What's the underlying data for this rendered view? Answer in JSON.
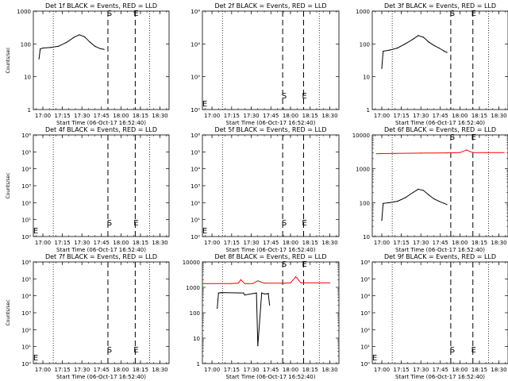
{
  "figure": {
    "x_ticks": [
      "17:00",
      "17:15",
      "17:30",
      "17:45",
      "18:00",
      "18:15",
      "18:30"
    ],
    "xlabel": "Start Time (06-Oct-17 16:52:40)",
    "marker_s": "S",
    "marker_e": "E",
    "colors": {
      "events": "#000000",
      "lld": "#ff0000",
      "background": "#ffffff"
    }
  },
  "chart_data": [
    {
      "type": "line",
      "title": "Det 1f BLACK = Events, RED = LLD",
      "ylabel": "Counts/sec",
      "y_scale": "log",
      "ylim": [
        1,
        1000
      ],
      "y_ticks": [
        "1",
        "10",
        "100",
        "1000"
      ],
      "xlim": [
        "16:52:40",
        "18:37:00"
      ],
      "vlines_dotted": [
        "17:08",
        "18:22"
      ],
      "start_line": "17:50",
      "end_line": "18:11",
      "start_label": "S",
      "end_label": "E",
      "series": [
        {
          "color": "black",
          "x": [
            "16:57",
            "16:58",
            "17:00",
            "17:06",
            "17:12",
            "17:18",
            "17:24",
            "17:28",
            "17:32",
            "17:36",
            "17:40",
            "17:44",
            "17:47"
          ],
          "values": [
            35,
            70,
            75,
            78,
            85,
            110,
            160,
            190,
            165,
            115,
            85,
            72,
            68
          ]
        }
      ]
    },
    {
      "type": "line",
      "title": "Det 2f BLACK = Events, RED = LLD",
      "ylabel": "",
      "y_scale": "log",
      "ylim": [
        1,
        1000000
      ],
      "y_ticks": [
        "10⁰",
        "10²",
        "10⁴",
        "10⁶"
      ],
      "xlim": [
        "16:52:40",
        "18:37:00"
      ],
      "vlines_dotted": [
        "17:08",
        "18:22"
      ],
      "start_line": "17:54",
      "end_line": "18:10",
      "start_label": "S",
      "end_label": "E",
      "series": []
    },
    {
      "type": "line",
      "title": "Det 3f BLACK = Events, RED = LLD",
      "ylabel": "",
      "y_scale": "log",
      "ylim": [
        1,
        1000
      ],
      "y_ticks": [
        "1",
        "10",
        "100",
        "1000"
      ],
      "xlim": [
        "16:52:40",
        "18:37:00"
      ],
      "vlines_dotted": [
        "17:08",
        "18:22"
      ],
      "start_line": "17:53",
      "end_line": "18:10",
      "start_label": "S",
      "end_label": "E",
      "series": [
        {
          "color": "black",
          "x": [
            "17:00",
            "17:01",
            "17:06",
            "17:12",
            "17:18",
            "17:24",
            "17:28",
            "17:32",
            "17:36",
            "17:40",
            "17:44",
            "17:48",
            "17:50"
          ],
          "values": [
            18,
            60,
            65,
            75,
            100,
            140,
            180,
            160,
            115,
            90,
            75,
            60,
            55
          ]
        }
      ]
    },
    {
      "type": "line",
      "title": "Det 4f BLACK = Events, RED = LLD",
      "ylabel": "Counts/sec",
      "y_scale": "log",
      "ylim": [
        1,
        1000000
      ],
      "y_ticks": [
        "10⁰",
        "10¹",
        "10²",
        "10³",
        "10⁴",
        "10⁵",
        "10⁶"
      ],
      "xlim": [
        "16:52:40",
        "18:37:00"
      ],
      "vlines_dotted": [
        "17:08",
        "18:22"
      ],
      "start_line": "17:50",
      "end_line": "18:11",
      "start_label": "S",
      "end_label": "E",
      "series": []
    },
    {
      "type": "line",
      "title": "Det 5f BLACK = Events, RED = LLD",
      "ylabel": "",
      "y_scale": "log",
      "ylim": [
        1,
        1000000
      ],
      "y_ticks": [
        "10⁰",
        "10¹",
        "10²",
        "10³",
        "10⁴",
        "10⁵",
        "10⁶"
      ],
      "xlim": [
        "16:52:40",
        "18:37:00"
      ],
      "vlines_dotted": [
        "17:08",
        "18:22"
      ],
      "start_line": "17:54",
      "end_line": "18:10",
      "start_label": "S",
      "end_label": "E",
      "series": []
    },
    {
      "type": "line",
      "title": "Det 6f BLACK = Events, RED = LLD",
      "ylabel": "",
      "y_scale": "log",
      "ylim": [
        10,
        10000
      ],
      "y_ticks": [
        "10",
        "100",
        "1000",
        "10000"
      ],
      "xlim": [
        "16:52:40",
        "18:37:00"
      ],
      "vlines_dotted": [
        "17:08",
        "18:22"
      ],
      "start_line": "17:53",
      "end_line": "18:10",
      "start_label": "S",
      "end_label": "E",
      "series": [
        {
          "color": "red",
          "x": [
            "16:56",
            "17:10",
            "17:30",
            "17:50",
            "18:00",
            "18:05",
            "18:10",
            "18:20",
            "18:34"
          ],
          "values": [
            2800,
            2850,
            2900,
            2950,
            3000,
            3600,
            3000,
            3000,
            3000
          ]
        },
        {
          "color": "black",
          "x": [
            "17:00",
            "17:01",
            "17:06",
            "17:12",
            "17:18",
            "17:24",
            "17:28",
            "17:32",
            "17:36",
            "17:40",
            "17:44",
            "17:48",
            "17:50"
          ],
          "values": [
            30,
            95,
            100,
            110,
            140,
            200,
            250,
            230,
            170,
            130,
            110,
            95,
            88
          ]
        }
      ]
    },
    {
      "type": "line",
      "title": "Det 7f BLACK = Events, RED = LLD",
      "ylabel": "Counts/sec",
      "y_scale": "log",
      "ylim": [
        1,
        1000000
      ],
      "y_ticks": [
        "10⁰",
        "10¹",
        "10²",
        "10³",
        "10⁴",
        "10⁵",
        "10⁶"
      ],
      "xlim": [
        "16:52:40",
        "18:37:00"
      ],
      "vlines_dotted": [
        "17:08",
        "18:22"
      ],
      "start_line": "17:50",
      "end_line": "18:11",
      "start_label": "S",
      "end_label": "E",
      "series": []
    },
    {
      "type": "line",
      "title": "Det 8f BLACK = Events, RED = LLD",
      "ylabel": "",
      "y_scale": "log",
      "ylim": [
        1,
        10000
      ],
      "y_ticks": [
        "1",
        "10",
        "100",
        "1000",
        "10000"
      ],
      "xlim": [
        "16:52:40",
        "18:37:00"
      ],
      "vlines_dotted": [
        "17:08",
        "18:22"
      ],
      "start_line": "17:54",
      "end_line": "18:10",
      "start_label": "S",
      "end_label": "E",
      "series": [
        {
          "color": "red",
          "x": [
            "16:53",
            "17:15",
            "17:20",
            "17:22",
            "17:25",
            "17:31",
            "17:35",
            "17:40",
            "17:55",
            "18:00",
            "18:04",
            "18:08",
            "18:30"
          ],
          "values": [
            1400,
            1400,
            1450,
            2000,
            1400,
            1400,
            1800,
            1450,
            1450,
            1500,
            2600,
            1500,
            1500
          ]
        },
        {
          "color": "black",
          "x": [
            "17:04",
            "17:05",
            "17:07",
            "17:24",
            "17:25",
            "17:34",
            "17:35",
            "17:38",
            "17:40",
            "17:42",
            "17:43",
            "17:44"
          ],
          "values": [
            150,
            600,
            620,
            600,
            500,
            600,
            5,
            600,
            550,
            550,
            580,
            200
          ]
        }
      ]
    },
    {
      "type": "line",
      "title": "Det 9f BLACK = Events, RED = LLD",
      "ylabel": "",
      "y_scale": "log",
      "ylim": [
        1,
        1000000
      ],
      "y_ticks": [
        "10⁰",
        "10¹",
        "10²",
        "10³",
        "10⁴",
        "10⁵",
        "10⁶"
      ],
      "xlim": [
        "16:52:40",
        "18:37:00"
      ],
      "vlines_dotted": [
        "17:08",
        "18:22"
      ],
      "start_line": "17:53",
      "end_line": "18:10",
      "start_label": "S",
      "end_label": "E",
      "series": []
    }
  ]
}
